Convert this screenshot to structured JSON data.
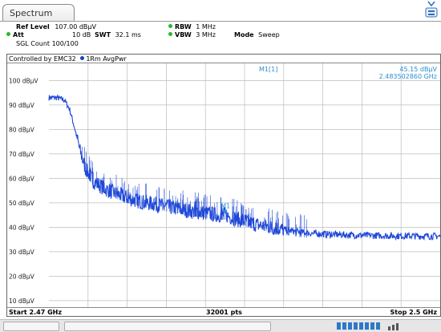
{
  "tab": {
    "label": "Spectrum"
  },
  "header": {
    "ref_level_label": "Ref Level",
    "ref_level_value": "107.00 dBµV",
    "att_label": "Att",
    "att_value": "10 dB",
    "swt_label": "SWT",
    "swt_value": "32.1 ms",
    "rbw_label": "RBW",
    "rbw_value": "1 MHz",
    "vbw_label": "VBW",
    "vbw_value": "3 MHz",
    "mode_label": "Mode",
    "mode_value": "Sweep",
    "sgl_count": "SGL Count 100/100"
  },
  "plot": {
    "controlled_by": "Controlled by EMC32",
    "trace_label": "1Rm AvgPwr",
    "marker_name": "M1[1]",
    "marker_level": "45.15 dBµV",
    "marker_freq": "2.483502860 GHz",
    "marker_tag": "M1",
    "start": "Start 2.47 GHz",
    "points": "32001 pts",
    "stop": "Stop 2.5 GHz"
  },
  "colors": {
    "trace": "#1f48d8",
    "marker": "#2a8fd0",
    "grid": "#bdbdbd",
    "status_green": "#2db52d"
  },
  "chart_data": {
    "type": "line",
    "x_unit": "GHz",
    "y_unit": "dBµV",
    "xlim": [
      2.47,
      2.5
    ],
    "ylim": [
      7,
      107
    ],
    "y_ticks": [
      {
        "value": 100,
        "label": "100 dBµV"
      },
      {
        "value": 90,
        "label": "90 dBµV"
      },
      {
        "value": 80,
        "label": "80 dBµV"
      },
      {
        "value": 70,
        "label": "70 dBµV"
      },
      {
        "value": 60,
        "label": "60 dBµV"
      },
      {
        "value": 50,
        "label": "50 dBµV"
      },
      {
        "value": 40,
        "label": "40 dBµV"
      },
      {
        "value": 30,
        "label": "30 dBµV"
      },
      {
        "value": 20,
        "label": "20 dBµV"
      },
      {
        "value": 10,
        "label": "10 dBµV"
      }
    ],
    "x_divisions": 10,
    "grid": true,
    "series": [
      {
        "x": [
          2.47,
          2.4706,
          2.4712,
          2.4716,
          2.472,
          2.4724,
          2.4728,
          2.4734,
          2.4742,
          2.475,
          2.476,
          2.477,
          2.478,
          2.479,
          2.48,
          2.481,
          2.482,
          2.483,
          2.4835,
          2.484,
          2.485,
          2.486,
          2.487,
          2.488,
          2.489,
          2.49,
          2.492,
          2.494,
          2.496,
          2.498,
          2.5
        ],
        "y": [
          93,
          93,
          92,
          88,
          80,
          71,
          64,
          59,
          56,
          54,
          52,
          50.5,
          49.5,
          48.5,
          47.5,
          46.5,
          45.8,
          45,
          45.15,
          44,
          42.5,
          41,
          40,
          39,
          38.2,
          37.5,
          37,
          36.7,
          36.5,
          36.4,
          36.3
        ]
      }
    ],
    "marker": {
      "x": 2.48350286,
      "y": 45.15
    }
  }
}
